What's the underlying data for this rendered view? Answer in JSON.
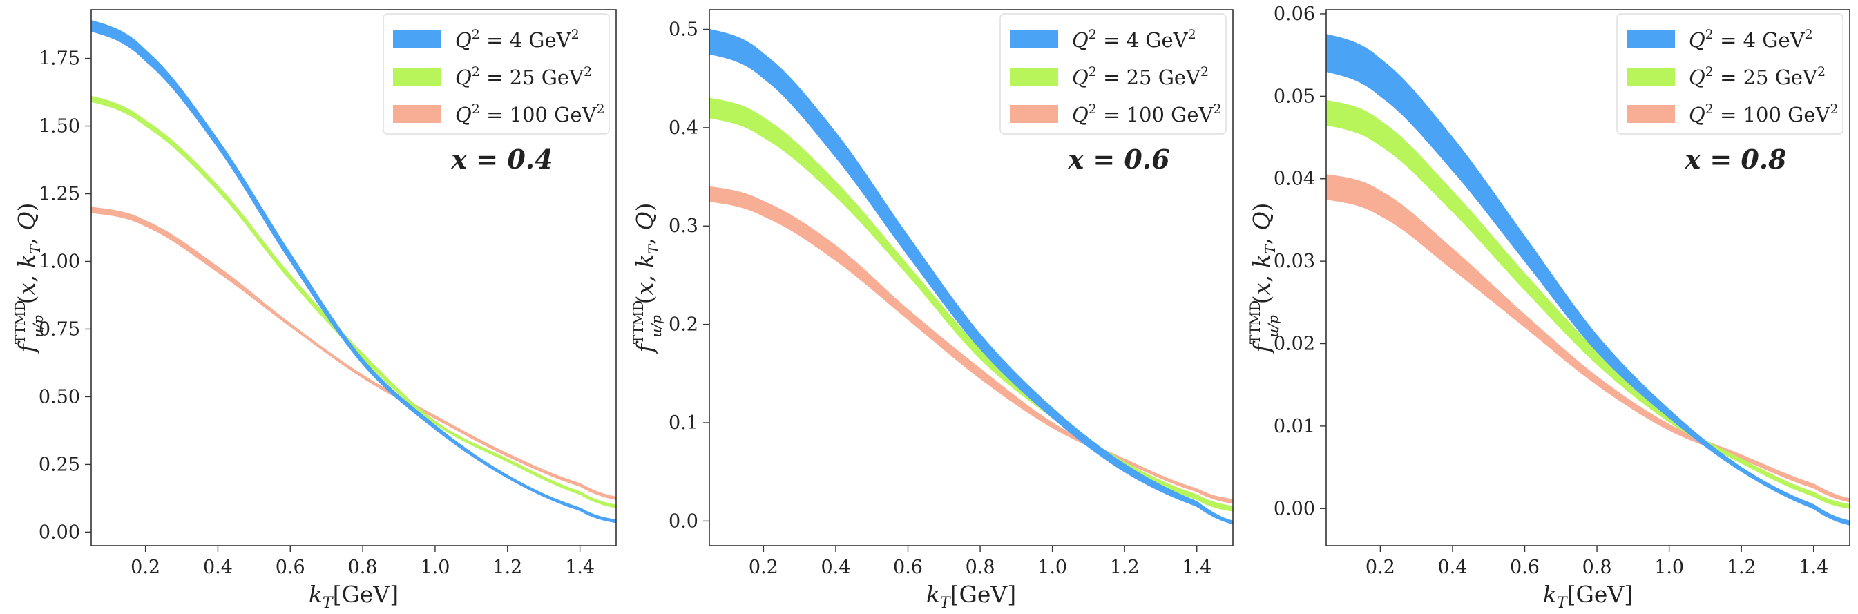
{
  "colors": {
    "blue": "#4aa3f5",
    "green": "#b7f55a",
    "salmon": "#f8ad95"
  },
  "chart_data": [
    {
      "type": "area",
      "title": "",
      "annotation": "x = 0.4",
      "xlabel": "k_T[GeV]",
      "ylabel": "f_u/p^TTMD(x, k_T, Q)",
      "xlim": [
        0.05,
        1.5
      ],
      "ylim": [
        -0.05,
        1.93
      ],
      "xticks": [
        "0.2",
        "0.4",
        "0.6",
        "0.8",
        "1.0",
        "1.2",
        "1.4"
      ],
      "xtick_values": [
        0.2,
        0.4,
        0.6,
        0.8,
        1.0,
        1.2,
        1.4
      ],
      "yticks": [
        "0.00",
        "0.25",
        "0.50",
        "0.75",
        "1.00",
        "1.25",
        "1.50",
        "1.75"
      ],
      "ytick_values": [
        0,
        0.25,
        0.5,
        0.75,
        1.0,
        1.25,
        1.5,
        1.75
      ],
      "legend_position": "top-right",
      "x": [
        0.05,
        0.2,
        0.4,
        0.6,
        0.8,
        1.0,
        1.2,
        1.4,
        1.5
      ],
      "series": [
        {
          "name": "Q^2 = 4 GeV^2",
          "label_main": "Q",
          "label_sup": "2",
          "label_rest": " = 4 GeV",
          "label_unit_sup": "2",
          "color_key": "blue",
          "lower": [
            1.85,
            1.74,
            1.42,
            1.0,
            0.62,
            0.38,
            0.2,
            0.08,
            0.035
          ],
          "upper": [
            1.89,
            1.78,
            1.45,
            1.03,
            0.64,
            0.395,
            0.21,
            0.09,
            0.045
          ]
        },
        {
          "name": "Q^2 = 25 GeV^2",
          "label_main": "Q",
          "label_sup": "2",
          "label_rest": " = 25 GeV",
          "label_unit_sup": "2",
          "color_key": "green",
          "lower": [
            1.59,
            1.5,
            1.26,
            0.93,
            0.64,
            0.4,
            0.26,
            0.14,
            0.09
          ],
          "upper": [
            1.61,
            1.52,
            1.28,
            0.95,
            0.66,
            0.41,
            0.27,
            0.15,
            0.1
          ]
        },
        {
          "name": "Q^2 = 100 GeV^2",
          "label_main": "Q",
          "label_sup": "2",
          "label_rest": " = 100 GeV",
          "label_unit_sup": "2",
          "color_key": "salmon",
          "lower": [
            1.18,
            1.13,
            0.96,
            0.76,
            0.57,
            0.42,
            0.28,
            0.17,
            0.12
          ],
          "upper": [
            1.2,
            1.15,
            0.98,
            0.77,
            0.58,
            0.43,
            0.29,
            0.18,
            0.13
          ]
        }
      ]
    },
    {
      "type": "area",
      "title": "",
      "annotation": "x = 0.6",
      "xlabel": "k_T[GeV]",
      "ylabel": "f_u/p^TTMD(x, k_T, Q)",
      "xlim": [
        0.05,
        1.5
      ],
      "ylim": [
        -0.025,
        0.52
      ],
      "xticks": [
        "0.2",
        "0.4",
        "0.6",
        "0.8",
        "1.0",
        "1.2",
        "1.4"
      ],
      "xtick_values": [
        0.2,
        0.4,
        0.6,
        0.8,
        1.0,
        1.2,
        1.4
      ],
      "yticks": [
        "0.0",
        "0.1",
        "0.2",
        "0.3",
        "0.4",
        "0.5"
      ],
      "ytick_values": [
        0,
        0.1,
        0.2,
        0.3,
        0.4,
        0.5
      ],
      "legend_position": "top-right",
      "x": [
        0.05,
        0.2,
        0.4,
        0.6,
        0.8,
        1.0,
        1.2,
        1.4,
        1.5
      ],
      "series": [
        {
          "name": "Q^2 = 4 GeV^2",
          "label_main": "Q",
          "label_sup": "2",
          "label_rest": " = 4 GeV",
          "label_unit_sup": "2",
          "color_key": "blue",
          "lower": [
            0.475,
            0.45,
            0.37,
            0.27,
            0.175,
            0.105,
            0.05,
            0.015,
            -0.003
          ],
          "upper": [
            0.5,
            0.475,
            0.395,
            0.29,
            0.19,
            0.115,
            0.058,
            0.02,
            0.0
          ]
        },
        {
          "name": "Q^2 = 25 GeV^2",
          "label_main": "Q",
          "label_sup": "2",
          "label_rest": " = 25 GeV",
          "label_unit_sup": "2",
          "color_key": "green",
          "lower": [
            0.41,
            0.39,
            0.33,
            0.25,
            0.165,
            0.105,
            0.055,
            0.022,
            0.01
          ],
          "upper": [
            0.43,
            0.41,
            0.345,
            0.26,
            0.175,
            0.11,
            0.06,
            0.027,
            0.015
          ]
        },
        {
          "name": "Q^2 = 100 GeV^2",
          "label_main": "Q",
          "label_sup": "2",
          "label_rest": " = 100 GeV",
          "label_unit_sup": "2",
          "color_key": "salmon",
          "lower": [
            0.325,
            0.31,
            0.265,
            0.205,
            0.145,
            0.095,
            0.06,
            0.03,
            0.018
          ],
          "upper": [
            0.34,
            0.325,
            0.28,
            0.215,
            0.155,
            0.1,
            0.063,
            0.033,
            0.022
          ]
        }
      ]
    },
    {
      "type": "area",
      "title": "",
      "annotation": "x = 0.8",
      "xlabel": "k_T[GeV]",
      "ylabel": "f_u/p^TTMD(x, k_T, Q)",
      "xlim": [
        0.05,
        1.5
      ],
      "ylim": [
        -0.0045,
        0.0605
      ],
      "xticks": [
        "0.2",
        "0.4",
        "0.6",
        "0.8",
        "1.0",
        "1.2",
        "1.4"
      ],
      "xtick_values": [
        0.2,
        0.4,
        0.6,
        0.8,
        1.0,
        1.2,
        1.4
      ],
      "yticks": [
        "0.00",
        "0.01",
        "0.02",
        "0.03",
        "0.04",
        "0.05",
        "0.06"
      ],
      "ytick_values": [
        0,
        0.01,
        0.02,
        0.03,
        0.04,
        0.05,
        0.06
      ],
      "legend_position": "top-right",
      "x": [
        0.05,
        0.2,
        0.4,
        0.6,
        0.8,
        1.0,
        1.2,
        1.4,
        1.5
      ],
      "series": [
        {
          "name": "Q^2 = 4 GeV^2",
          "label_main": "Q",
          "label_sup": "2",
          "label_rest": " = 4 GeV",
          "label_unit_sup": "2",
          "color_key": "blue",
          "lower": [
            0.053,
            0.05,
            0.041,
            0.03,
            0.019,
            0.011,
            0.0045,
            0.0,
            -0.002
          ],
          "upper": [
            0.0575,
            0.0545,
            0.045,
            0.033,
            0.021,
            0.012,
            0.005,
            0.0005,
            -0.0015
          ]
        },
        {
          "name": "Q^2 = 25 GeV^2",
          "label_main": "Q",
          "label_sup": "2",
          "label_rest": " = 25 GeV",
          "label_unit_sup": "2",
          "color_key": "green",
          "lower": [
            0.0465,
            0.044,
            0.036,
            0.0265,
            0.0175,
            0.0105,
            0.0055,
            0.0015,
            0.0
          ],
          "upper": [
            0.0495,
            0.047,
            0.0385,
            0.0285,
            0.019,
            0.011,
            0.006,
            0.002,
            0.0005
          ]
        },
        {
          "name": "Q^2 = 100 GeV^2",
          "label_main": "Q",
          "label_sup": "2",
          "label_rest": " = 100 GeV",
          "label_unit_sup": "2",
          "color_key": "salmon",
          "lower": [
            0.0375,
            0.0355,
            0.029,
            0.022,
            0.015,
            0.0095,
            0.006,
            0.0025,
            0.0008
          ],
          "upper": [
            0.0405,
            0.0385,
            0.0315,
            0.0235,
            0.016,
            0.0102,
            0.0065,
            0.003,
            0.0012
          ]
        }
      ]
    }
  ]
}
